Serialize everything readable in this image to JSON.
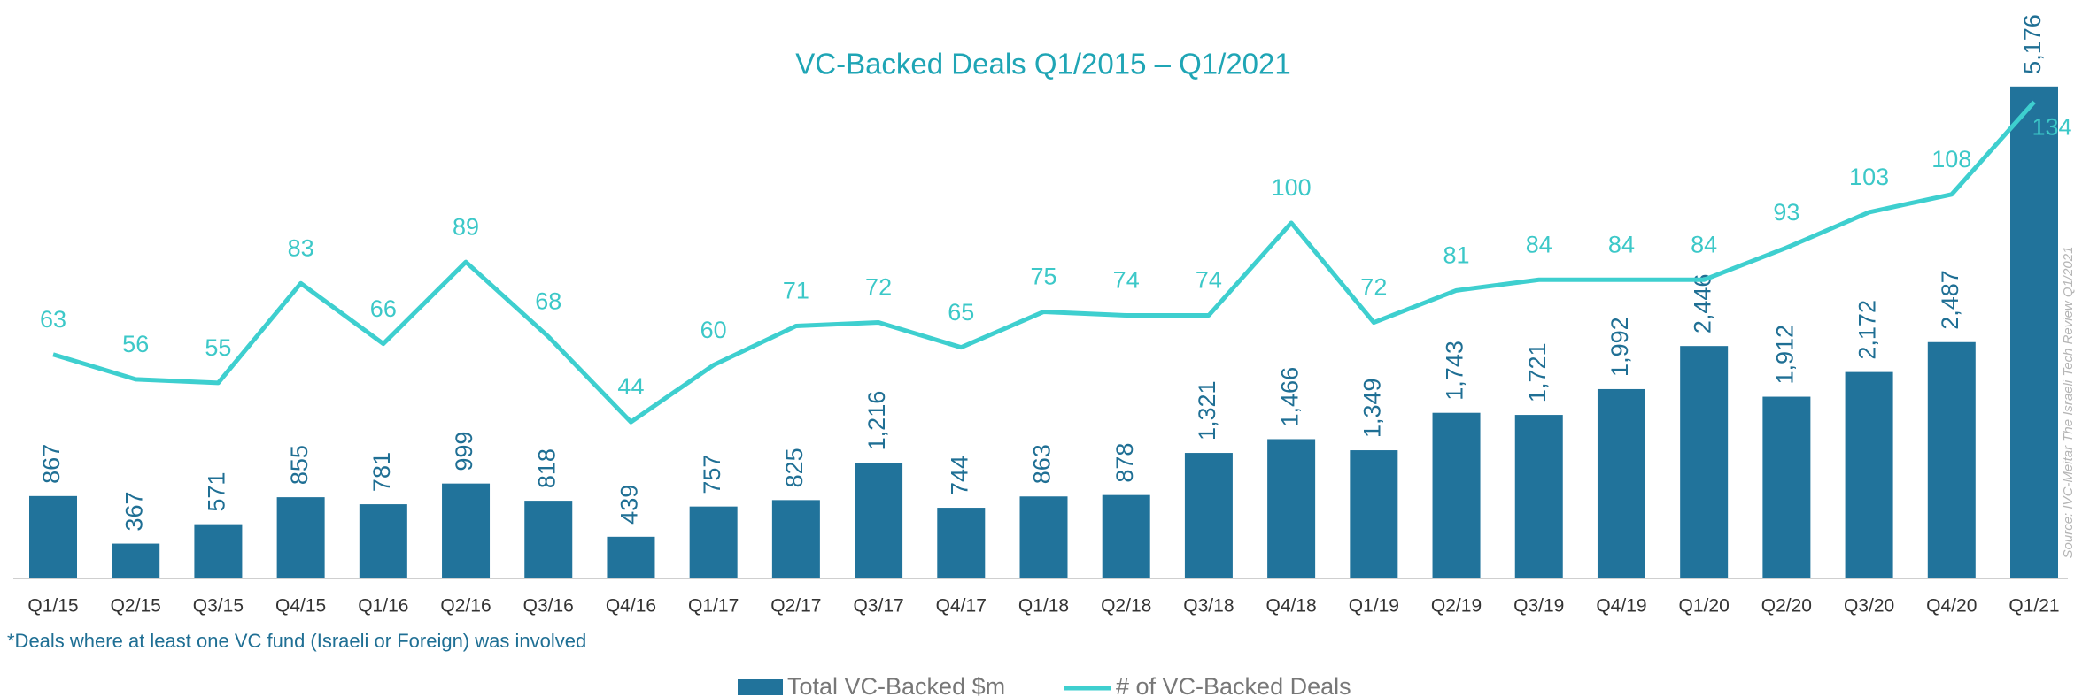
{
  "chart_data": {
    "type": "bar_line",
    "title": "VC-Backed Deals Q1/2015 – Q1/2021",
    "note": "*Deals where at least one VC fund (Israeli or Foreign) was involved",
    "source": "Source: IVC-Meitar The Israeli Tech Review Q1/2021",
    "categories": [
      "Q1/15",
      "Q2/15",
      "Q3/15",
      "Q4/15",
      "Q1/16",
      "Q2/16",
      "Q3/16",
      "Q4/16",
      "Q1/17",
      "Q2/17",
      "Q3/17",
      "Q4/17",
      "Q1/18",
      "Q2/18",
      "Q3/18",
      "Q4/18",
      "Q1/19",
      "Q2/19",
      "Q3/19",
      "Q4/19",
      "Q1/20",
      "Q2/20",
      "Q3/20",
      "Q4/20",
      "Q1/21"
    ],
    "series": [
      {
        "name": "Total VC-Backed $m",
        "color": "#21739b",
        "type": "bar",
        "values": [
          867,
          367,
          571,
          855,
          781,
          999,
          818,
          439,
          757,
          825,
          1216,
          744,
          863,
          878,
          1321,
          1466,
          1349,
          1743,
          1721,
          1992,
          2446,
          1912,
          2172,
          2487,
          5176
        ],
        "value_labels": [
          "867",
          "367",
          "571",
          "855",
          "781",
          "999",
          "818",
          "439",
          "757",
          "825",
          "1,216",
          "744",
          "863",
          "878",
          "1,321",
          "1,466",
          "1,349",
          "1,743",
          "1,721",
          "1,992",
          "2,446",
          "1,912",
          "2,172",
          "2,487",
          "5,176"
        ]
      },
      {
        "name": "# of VC-Backed Deals",
        "color": "#3ecfcf",
        "type": "line",
        "axis": "y2",
        "values": [
          63,
          56,
          55,
          83,
          66,
          89,
          68,
          44,
          60,
          71,
          72,
          65,
          75,
          74,
          74,
          100,
          72,
          81,
          84,
          84,
          84,
          93,
          103,
          108,
          134
        ]
      }
    ],
    "ylim": [
      0,
      5500
    ],
    "y2lim": [
      0,
      147
    ]
  }
}
